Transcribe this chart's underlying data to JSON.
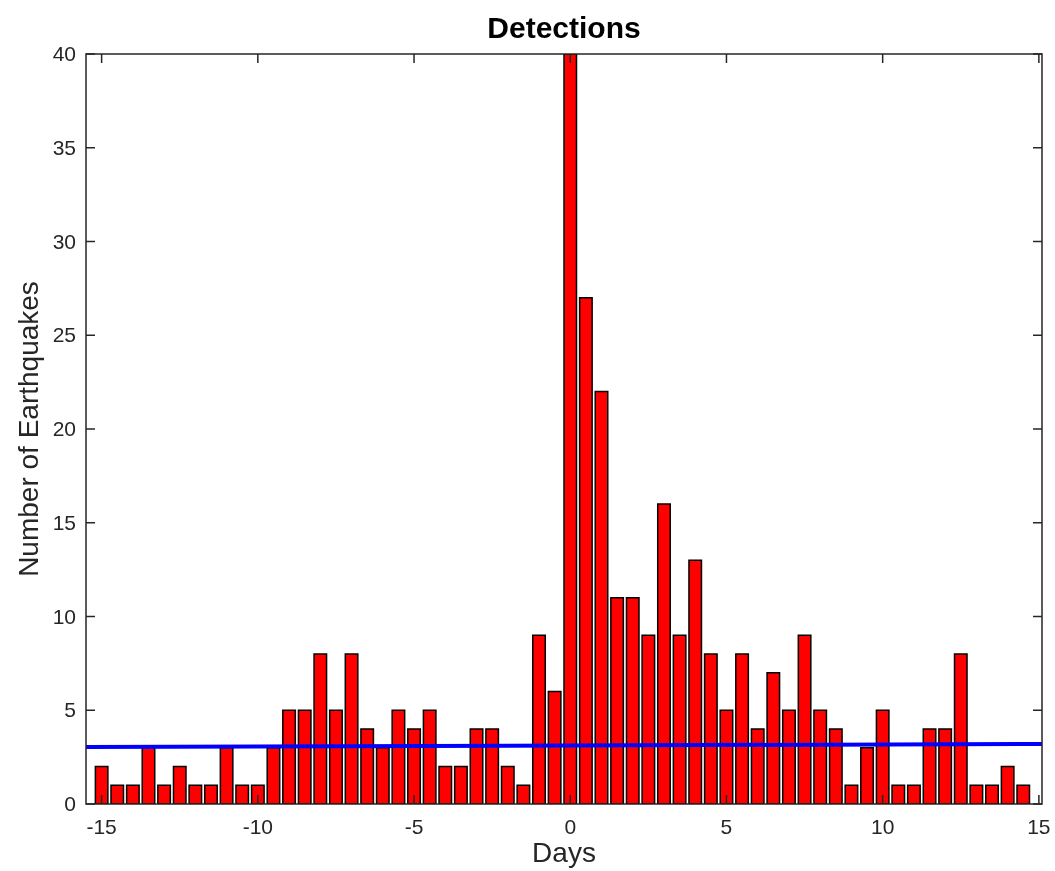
{
  "chart_data": {
    "type": "bar",
    "title": "Detections",
    "xlabel": "Days",
    "ylabel": "Number of Earthquakes",
    "x": [
      -15,
      -14.5,
      -14,
      -13.5,
      -13,
      -12.5,
      -12,
      -11.5,
      -11,
      -10.5,
      -10,
      -9.5,
      -9,
      -8.5,
      -8,
      -7.5,
      -7,
      -6.5,
      -6,
      -5.5,
      -5,
      -4.5,
      -4,
      -3.5,
      -3,
      -2.5,
      -2,
      -1.5,
      -1,
      -0.5,
      0,
      0.5,
      1,
      1.5,
      2,
      2.5,
      3,
      3.5,
      4,
      4.5,
      5,
      5.5,
      6,
      6.5,
      7,
      7.5,
      8,
      8.5,
      9,
      9.5,
      10,
      10.5,
      11,
      11.5,
      12,
      12.5,
      13,
      13.5,
      14,
      14.5
    ],
    "series": [
      {
        "color": "#ff0000",
        "values": [
          2,
          1,
          1,
          3,
          1,
          2,
          1,
          1,
          3,
          1,
          1,
          3,
          5,
          5,
          8,
          5,
          8,
          4,
          3,
          5,
          4,
          5,
          2,
          2,
          4,
          4,
          2,
          1,
          9,
          6,
          40,
          27,
          22,
          11,
          11,
          9,
          16,
          9,
          13,
          8,
          5,
          8,
          4,
          7,
          5,
          9,
          5,
          4,
          1,
          3,
          5,
          1,
          1,
          4,
          4,
          8,
          1,
          1,
          2,
          1
        ]
      },
      {
        "type": "line",
        "color": "#0000ff",
        "x": [
          -15.5,
          15.1
        ],
        "values": [
          3.04,
          3.2
        ]
      }
    ],
    "xlim": [
      -15.5,
      15.1
    ],
    "xticks": [
      -15,
      -10,
      -5,
      0,
      5,
      10,
      15
    ],
    "ylim": [
      0,
      40
    ],
    "yticks": [
      0,
      5,
      10,
      15,
      20,
      25,
      30,
      35,
      40
    ]
  }
}
